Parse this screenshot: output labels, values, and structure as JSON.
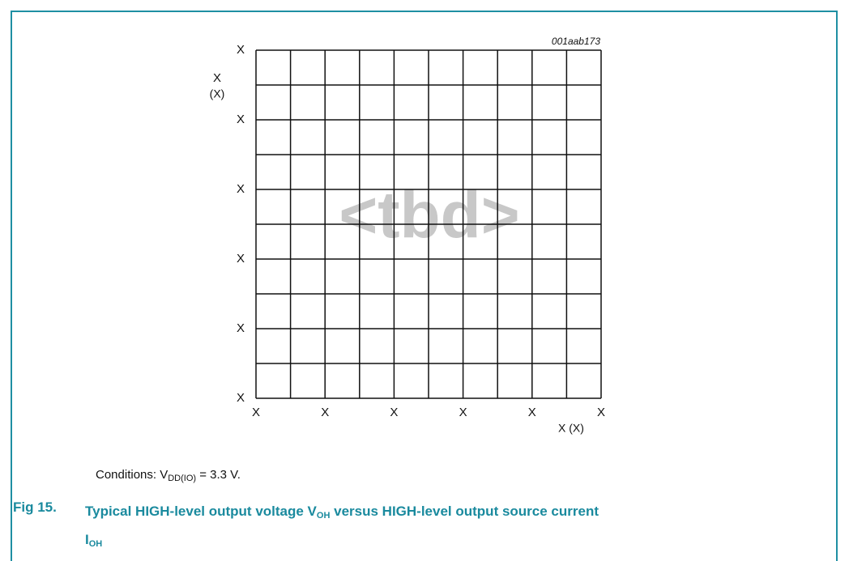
{
  "figure": {
    "id": "001aab173",
    "watermark": "<tbd>",
    "y_axis": {
      "label": "X",
      "unit": "(X)",
      "ticks": [
        "X",
        "X",
        "X",
        "X",
        "X",
        "X"
      ]
    },
    "x_axis": {
      "ticks": [
        "X",
        "X",
        "X",
        "X",
        "X",
        "X"
      ],
      "label": "X (X)"
    }
  },
  "conditions": {
    "text": "Conditions: V",
    "subscript": "DD(IO)",
    "rest": " = 3.3 V."
  },
  "caption": {
    "number": "Fig 15.",
    "line1": "Typical HIGH-level output voltage V",
    "sub1": "OH",
    "line1_rest": " versus HIGH-level output source current",
    "line2": "I",
    "sub2": "OH"
  }
}
